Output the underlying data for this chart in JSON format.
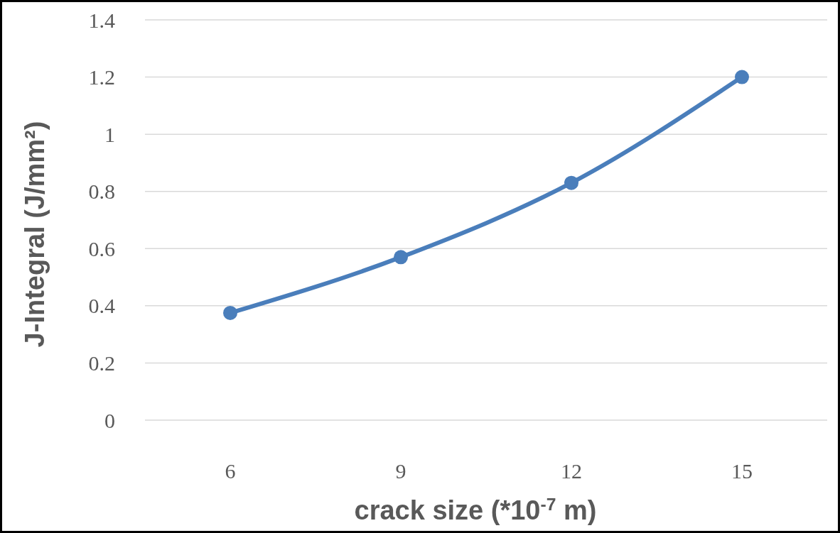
{
  "chart_data": {
    "type": "line",
    "xlabel": "crack size (*10$^{-7}$ m)",
    "ylabel": "J-Integral (J/mm²)",
    "categories": [
      "6",
      "9",
      "12",
      "15"
    ],
    "series": [
      {
        "color": "#4a7ebb",
        "values": [
          0.375,
          0.57,
          0.83,
          1.2
        ]
      }
    ],
    "ylim": [
      0,
      1.4
    ],
    "yticks": [
      {
        "value": 0,
        "label": "0"
      },
      {
        "value": 0.2,
        "label": "0.2"
      },
      {
        "value": 0.4,
        "label": "0.4"
      },
      {
        "value": 0.6,
        "label": "0.6"
      },
      {
        "value": 0.8,
        "label": "0.8"
      },
      {
        "value": 1,
        "label": "1"
      },
      {
        "value": 1.2,
        "label": "1.2"
      },
      {
        "value": 1.4,
        "label": "1.4"
      }
    ],
    "grid": "y",
    "marker": "circle",
    "line_style": "solid"
  }
}
